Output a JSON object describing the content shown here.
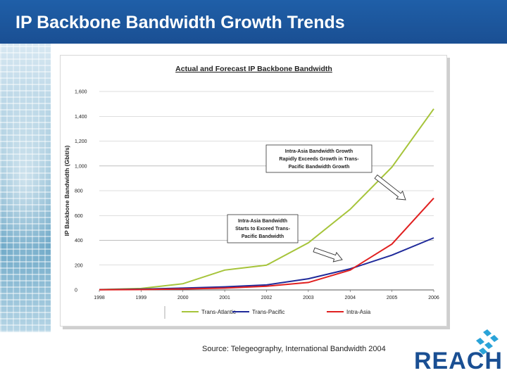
{
  "page": {
    "title": "IP Backbone Bandwidth Growth Trends",
    "source": "Source: Telegeography, International Bandwidth 2004",
    "logo_text": "REACH"
  },
  "colors": {
    "title_bar": "#1a4f93",
    "trans_atlantic": "#a6c43a",
    "trans_pacific": "#1f2a9a",
    "intra_asia": "#e02020"
  },
  "chart_data": {
    "type": "line",
    "title": "Actual and Forecast IP Backbone Bandwidth",
    "ylabel": "IP Backbone Bandwidth (Gbit/s)",
    "xlabel": "",
    "categories": [
      "1998",
      "1999",
      "2000",
      "2001",
      "2002",
      "2003",
      "2004",
      "2005",
      "2006"
    ],
    "ylim": [
      0,
      1600
    ],
    "yticks": [
      "0",
      "200",
      "400",
      "600",
      "800",
      "1,000",
      "1,200",
      "1,400",
      "1,600"
    ],
    "grid": "horizontal",
    "legend": "bottom",
    "series": [
      {
        "name": "Trans-Atlantic",
        "color": "#a6c43a",
        "values": [
          3,
          12,
          50,
          160,
          200,
          380,
          650,
          990,
          1460
        ]
      },
      {
        "name": "Trans-Pacific",
        "color": "#1f2a9a",
        "values": [
          2,
          6,
          15,
          25,
          40,
          90,
          170,
          280,
          420
        ]
      },
      {
        "name": "Intra-Asia",
        "color": "#e02020",
        "values": [
          1,
          3,
          8,
          15,
          30,
          60,
          160,
          370,
          740
        ]
      }
    ],
    "annotations": [
      {
        "lines": [
          "Intra-Asia Bandwidth Growth",
          "Rapidly Exceeds Growth in Trans-",
          "Pacific Bandwidth Growth"
        ]
      },
      {
        "lines": [
          "Intra-Asia Bandwidth",
          "Starts to Exceed Trans-",
          "Pacific Bandwidth"
        ]
      }
    ]
  }
}
